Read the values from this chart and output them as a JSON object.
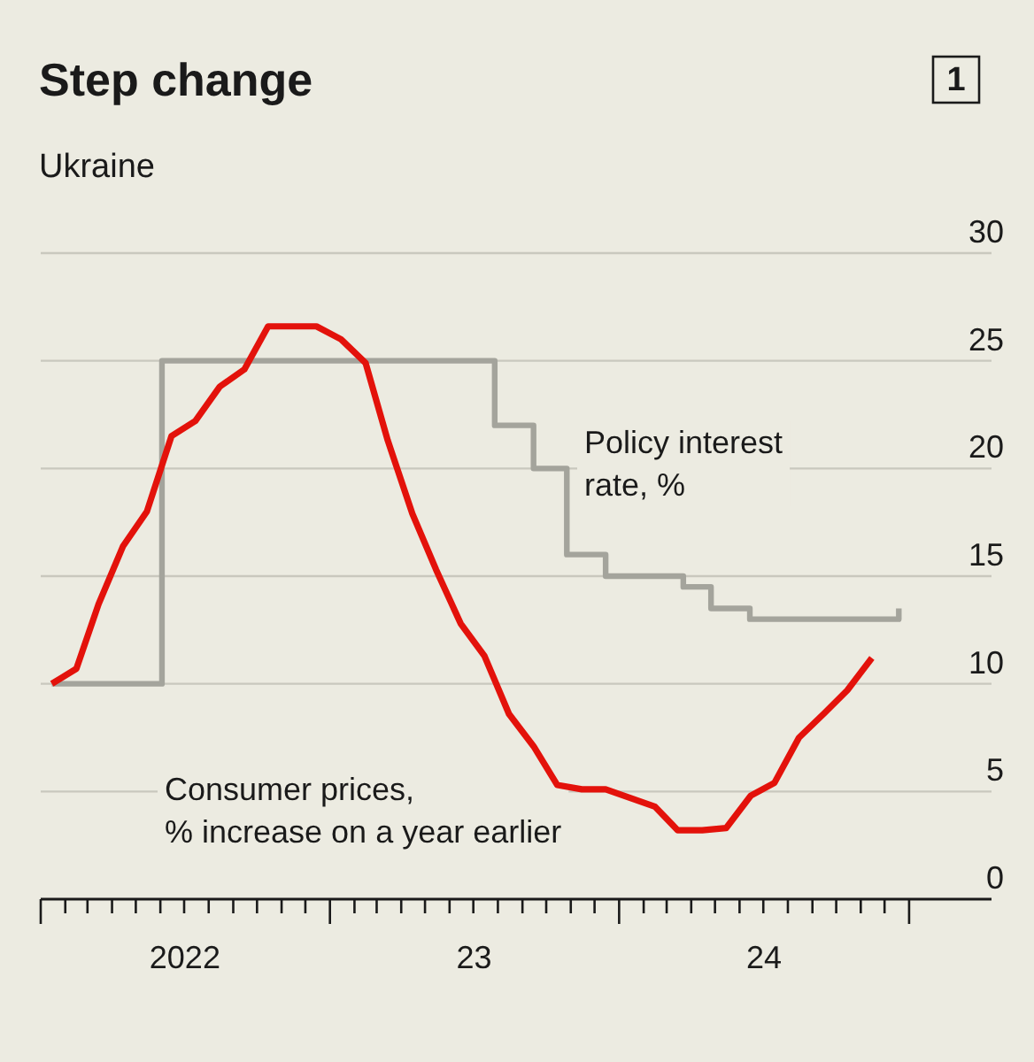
{
  "chart_data": {
    "type": "line",
    "title": "Step change",
    "subtitle": "Ukraine",
    "annotations": [
      "1"
    ],
    "xlim": [
      "2022-01-01",
      "2025-04-15"
    ],
    "xticks": [
      {
        "value": "2022-01-01",
        "label": null
      },
      {
        "value": "2022-02-01",
        "label": null
      },
      {
        "value": "2022-03-01",
        "label": null
      },
      {
        "value": "2022-04-01",
        "label": null
      },
      {
        "value": "2022-05-01",
        "label": null
      },
      {
        "value": "2022-06-01",
        "label": null
      },
      {
        "value": "2022-07-01",
        "label": null
      },
      {
        "value": "2022-08-01",
        "label": null
      },
      {
        "value": "2022-09-01",
        "label": null
      },
      {
        "value": "2022-10-01",
        "label": null
      },
      {
        "value": "2022-11-01",
        "label": null
      },
      {
        "value": "2022-12-01",
        "label": null
      },
      {
        "value": "2023-01-01",
        "label": null
      },
      {
        "value": "2023-02-01",
        "label": null
      },
      {
        "value": "2023-03-01",
        "label": null
      },
      {
        "value": "2023-04-01",
        "label": null
      },
      {
        "value": "2023-05-01",
        "label": null
      },
      {
        "value": "2023-06-01",
        "label": null
      },
      {
        "value": "2023-07-01",
        "label": null
      },
      {
        "value": "2023-08-01",
        "label": null
      },
      {
        "value": "2023-09-01",
        "label": null
      },
      {
        "value": "2023-10-01",
        "label": null
      },
      {
        "value": "2023-11-01",
        "label": null
      },
      {
        "value": "2023-12-01",
        "label": null
      },
      {
        "value": "2024-01-01",
        "label": null
      },
      {
        "value": "2024-02-01",
        "label": null
      },
      {
        "value": "2024-03-01",
        "label": null
      },
      {
        "value": "2024-04-01",
        "label": null
      },
      {
        "value": "2024-05-01",
        "label": null
      },
      {
        "value": "2024-06-01",
        "label": null
      },
      {
        "value": "2024-07-01",
        "label": null
      },
      {
        "value": "2024-08-01",
        "label": null
      },
      {
        "value": "2024-09-01",
        "label": null
      },
      {
        "value": "2024-10-01",
        "label": null
      },
      {
        "value": "2024-11-01",
        "label": null
      },
      {
        "value": "2024-12-01",
        "label": null
      },
      {
        "value": "2025-01-01",
        "label": null
      },
      {
        "value": "2022-07-02",
        "label": "2022"
      },
      {
        "value": "2023-07-02",
        "label": "23"
      },
      {
        "value": "2024-07-02",
        "label": "24"
      }
    ],
    "ylim": [
      0,
      30
    ],
    "yticks": [
      0,
      5,
      10,
      15,
      20,
      25,
      30
    ],
    "grid": "y",
    "legend": false,
    "series": [
      {
        "name": "Policy interest rate, %",
        "type": "step",
        "color": "#a4a49c",
        "x": [
          "2022-01-15",
          "2022-06-03",
          "2023-07-28",
          "2023-09-15",
          "2023-10-27",
          "2023-12-15",
          "2024-03-22",
          "2024-04-26",
          "2024-06-14",
          "2024-12-12",
          "2024-12-19"
        ],
        "values": [
          10,
          25,
          22,
          20,
          16,
          15,
          14.5,
          13.5,
          13,
          13,
          13.5
        ]
      },
      {
        "name": "Consumer prices, % increase on a year earlier",
        "type": "line",
        "color": "#e3120b",
        "x": [
          "2022-01-15",
          "2022-02-15",
          "2022-03-15",
          "2022-04-15",
          "2022-05-15",
          "2022-06-15",
          "2022-07-15",
          "2022-08-15",
          "2022-09-15",
          "2022-10-15",
          "2022-11-15",
          "2022-12-15",
          "2023-01-15",
          "2023-02-15",
          "2023-03-15",
          "2023-04-15",
          "2023-05-15",
          "2023-06-15",
          "2023-07-15",
          "2023-08-15",
          "2023-09-15",
          "2023-10-15",
          "2023-11-15",
          "2023-12-15",
          "2024-01-15",
          "2024-02-15",
          "2024-03-15",
          "2024-04-15",
          "2024-05-15",
          "2024-06-15",
          "2024-07-15",
          "2024-08-15",
          "2024-09-15",
          "2024-10-15",
          "2024-11-15"
        ],
        "values": [
          10.0,
          10.7,
          13.7,
          16.4,
          18.0,
          21.5,
          22.2,
          23.8,
          24.6,
          26.6,
          26.6,
          26.6,
          26.0,
          24.9,
          21.3,
          17.9,
          15.3,
          12.8,
          11.3,
          8.6,
          7.1,
          5.3,
          5.1,
          5.1,
          4.7,
          4.3,
          3.2,
          3.2,
          3.3,
          4.8,
          5.4,
          7.5,
          8.6,
          9.7,
          11.2
        ]
      }
    ]
  }
}
